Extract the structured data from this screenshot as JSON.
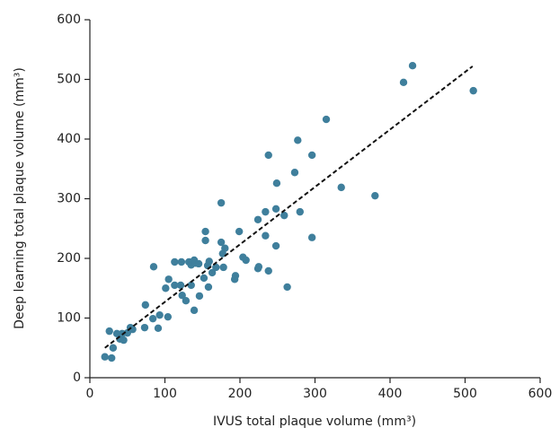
{
  "chart_data": {
    "type": "scatter",
    "x_label": "IVUS total plaque volume (mm³)",
    "y_label": "Deep learning total plaque volume (mm³)",
    "color": "#3f7f9c",
    "x": [
      20,
      29,
      26,
      31,
      36,
      40,
      43,
      45,
      50,
      54,
      57,
      74,
      73,
      85,
      84,
      91,
      93,
      104,
      101,
      105,
      113,
      113,
      122,
      121,
      123,
      128,
      132,
      135,
      139,
      141,
      145,
      135,
      139,
      146,
      152,
      154,
      154,
      157,
      159,
      158,
      163,
      168,
      175,
      175,
      178,
      180,
      177,
      194,
      193,
      199,
      204,
      208,
      224,
      224,
      225,
      234,
      234,
      238,
      238,
      248,
      249,
      248,
      259,
      263,
      273,
      277,
      280,
      296,
      296,
      315,
      335,
      380,
      418,
      430,
      511
    ],
    "y": [
      35,
      33,
      78,
      50,
      74,
      65,
      74,
      63,
      75,
      84,
      81,
      122,
      84,
      186,
      99,
      83,
      105,
      102,
      150,
      165,
      155,
      194,
      194,
      155,
      138,
      129,
      194,
      189,
      197,
      192,
      191,
      155,
      113,
      137,
      167,
      245,
      230,
      188,
      195,
      152,
      176,
      185,
      293,
      227,
      185,
      217,
      208,
      171,
      165,
      245,
      202,
      197,
      265,
      183,
      186,
      238,
      278,
      179,
      373,
      283,
      326,
      221,
      272,
      152,
      344,
      398,
      278,
      373,
      235,
      433,
      319,
      305,
      495,
      523,
      481
    ],
    "trendline": {
      "x": [
        20,
        510
      ],
      "y": [
        50,
        522
      ]
    },
    "xlim": [
      0,
      600
    ],
    "ylim": [
      0,
      600
    ],
    "xticks": [
      0,
      100,
      200,
      300,
      400,
      500,
      600
    ],
    "yticks": [
      0,
      100,
      200,
      300,
      400,
      500,
      600
    ],
    "grid": false
  }
}
